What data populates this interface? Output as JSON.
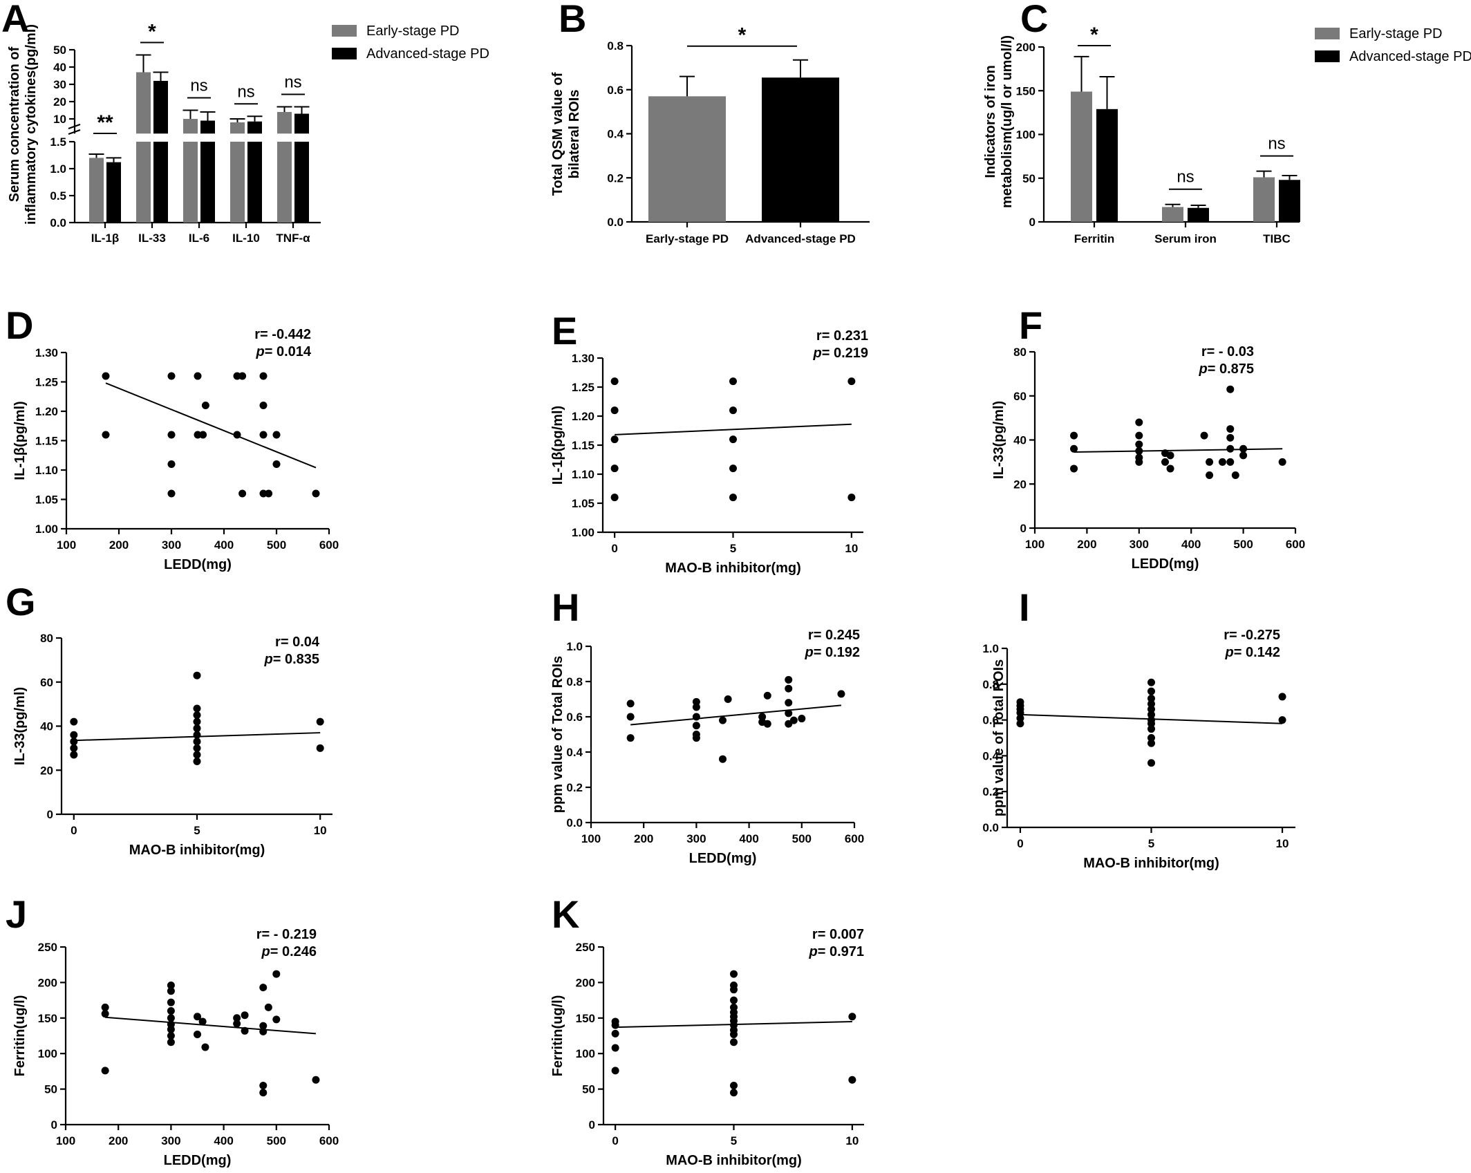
{
  "colors": {
    "early": "#7a7a7a",
    "advanced": "#000000",
    "axis": "#000000"
  },
  "chart_data": [
    {
      "id": "A",
      "type": "bar",
      "panel_label": "A",
      "ylabel_lines": [
        "Serum concentration of",
        "inflammatory cytokines(pg/ml)"
      ],
      "categories": [
        "IL-1β",
        "IL-33",
        "IL-6",
        "IL-10",
        "TNF-α"
      ],
      "axis_break": {
        "lower": [
          0,
          1.5
        ],
        "upper": [
          1.5,
          50
        ]
      },
      "lower_ticks": [
        "0.0",
        "0.5",
        "1.0",
        "1.5"
      ],
      "upper_ticks": [
        "10",
        "20",
        "30",
        "40",
        "50"
      ],
      "series": [
        {
          "name": "Early-stage PD",
          "values": [
            1.2,
            37,
            10,
            8,
            14
          ],
          "errors": [
            0.07,
            10,
            5,
            2,
            3
          ]
        },
        {
          "name": "Advanced-stage PD",
          "values": [
            1.12,
            32,
            9,
            8.5,
            13
          ],
          "errors": [
            0.08,
            5,
            5,
            3,
            4
          ]
        }
      ],
      "significance": [
        "**",
        "*",
        "ns",
        "ns",
        "ns"
      ],
      "legend": [
        "Early-stage PD",
        "Advanced-stage PD"
      ]
    },
    {
      "id": "B",
      "type": "bar",
      "panel_label": "B",
      "ylabel_lines": [
        "Total QSM value of",
        "bilateral ROIs"
      ],
      "categories": [
        "Early-stage PD",
        "Advanced-stage PD"
      ],
      "values": [
        0.57,
        0.655
      ],
      "errors": [
        0.09,
        0.08
      ],
      "ylim": [
        0,
        0.8
      ],
      "yticks": [
        "0.0",
        "0.2",
        "0.4",
        "0.6",
        "0.8"
      ],
      "significance": [
        "*"
      ]
    },
    {
      "id": "C",
      "type": "bar",
      "panel_label": "C",
      "ylabel_lines": [
        "Indicators of iron",
        "metabolism(ug/l or umol/l)"
      ],
      "categories": [
        "Ferritin",
        "Serum iron",
        "TIBC"
      ],
      "series": [
        {
          "name": "Early-stage PD",
          "values": [
            149,
            17,
            51
          ],
          "errors": [
            40,
            3,
            7
          ]
        },
        {
          "name": "Advanced-stage PD",
          "values": [
            129,
            16,
            48
          ],
          "errors": [
            37,
            3,
            5
          ]
        }
      ],
      "ylim": [
        0,
        200
      ],
      "yticks": [
        "0",
        "50",
        "100",
        "150",
        "200"
      ],
      "significance": [
        "*",
        "ns",
        "ns"
      ],
      "legend": [
        "Early-stage PD",
        "Advanced-stage PD"
      ]
    },
    {
      "id": "D",
      "type": "scatter",
      "panel_label": "D",
      "xlabel": "LEDD(mg)",
      "ylabel": "IL-1β(pg/ml)",
      "xlim": [
        100,
        600
      ],
      "ylim": [
        1.0,
        1.3
      ],
      "xticks": [
        "100",
        "200",
        "300",
        "400",
        "500",
        "600"
      ],
      "yticks": [
        "1.00",
        "1.05",
        "1.10",
        "1.15",
        "1.20",
        "1.25",
        "1.30"
      ],
      "r_text": "r= -0.442",
      "p_value": "0.014",
      "fit": [
        [
          175,
          1.248
        ],
        [
          575,
          1.104
        ]
      ],
      "points": [
        [
          175,
          1.26
        ],
        [
          175,
          1.16
        ],
        [
          300,
          1.26
        ],
        [
          300,
          1.16
        ],
        [
          300,
          1.11
        ],
        [
          300,
          1.06
        ],
        [
          350,
          1.26
        ],
        [
          350,
          1.16
        ],
        [
          360,
          1.16
        ],
        [
          365,
          1.21
        ],
        [
          425,
          1.26
        ],
        [
          425,
          1.16
        ],
        [
          435,
          1.26
        ],
        [
          435,
          1.06
        ],
        [
          475,
          1.26
        ],
        [
          475,
          1.21
        ],
        [
          475,
          1.16
        ],
        [
          475,
          1.06
        ],
        [
          485,
          1.06
        ],
        [
          500,
          1.16
        ],
        [
          500,
          1.11
        ],
        [
          575,
          1.06
        ]
      ]
    },
    {
      "id": "E",
      "type": "scatter",
      "panel_label": "E",
      "xlabel": "MAO-B inhibitor(mg)",
      "ylabel": "IL-1β(pg/ml)",
      "xlim": [
        -0.5,
        10.5
      ],
      "ylim": [
        1.0,
        1.3
      ],
      "xticks": [
        "0",
        "5",
        "10"
      ],
      "yticks": [
        "1.00",
        "1.05",
        "1.10",
        "1.15",
        "1.20",
        "1.25",
        "1.30"
      ],
      "r_text": "r= 0.231",
      "p_value": "0.219",
      "fit": [
        [
          0,
          1.168
        ],
        [
          10,
          1.186
        ]
      ],
      "points": [
        [
          0,
          1.26
        ],
        [
          0,
          1.21
        ],
        [
          0,
          1.16
        ],
        [
          0,
          1.11
        ],
        [
          0,
          1.06
        ],
        [
          5,
          1.26
        ],
        [
          5,
          1.21
        ],
        [
          5,
          1.16
        ],
        [
          5,
          1.11
        ],
        [
          5,
          1.06
        ],
        [
          10,
          1.26
        ],
        [
          10,
          1.06
        ]
      ]
    },
    {
      "id": "F",
      "type": "scatter",
      "panel_label": "F",
      "xlabel": "LEDD(mg)",
      "ylabel": "IL-33(pg/ml)",
      "xlim": [
        100,
        600
      ],
      "ylim": [
        0,
        80
      ],
      "xticks": [
        "100",
        "200",
        "300",
        "400",
        "500",
        "600"
      ],
      "yticks": [
        "0",
        "20",
        "40",
        "60",
        "80"
      ],
      "r_text": "r= - 0.03",
      "p_value": "0.875",
      "fit": [
        [
          175,
          34.5
        ],
        [
          575,
          36
        ]
      ],
      "points": [
        [
          175,
          42
        ],
        [
          175,
          36
        ],
        [
          175,
          27
        ],
        [
          300,
          48
        ],
        [
          300,
          42
        ],
        [
          300,
          38
        ],
        [
          300,
          35
        ],
        [
          300,
          32
        ],
        [
          300,
          30
        ],
        [
          350,
          34
        ],
        [
          350,
          30
        ],
        [
          360,
          33
        ],
        [
          360,
          27
        ],
        [
          425,
          42
        ],
        [
          435,
          30
        ],
        [
          435,
          24
        ],
        [
          460,
          30
        ],
        [
          475,
          63
        ],
        [
          475,
          45
        ],
        [
          475,
          41
        ],
        [
          475,
          36
        ],
        [
          475,
          30
        ],
        [
          485,
          24
        ],
        [
          500,
          36
        ],
        [
          500,
          33
        ],
        [
          575,
          30
        ]
      ]
    },
    {
      "id": "G",
      "type": "scatter",
      "panel_label": "G",
      "xlabel": "MAO-B inhibitor(mg)",
      "ylabel": "IL-33(pg/ml)",
      "xlim": [
        -0.5,
        10.5
      ],
      "ylim": [
        0,
        80
      ],
      "xticks": [
        "0",
        "5",
        "10"
      ],
      "yticks": [
        "0",
        "20",
        "40",
        "60",
        "80"
      ],
      "r_text": "r= 0.04",
      "p_value": "0.835",
      "fit": [
        [
          0,
          33.5
        ],
        [
          10,
          37
        ]
      ],
      "points": [
        [
          0,
          42
        ],
        [
          0,
          36
        ],
        [
          0,
          33
        ],
        [
          0,
          30
        ],
        [
          0,
          27
        ],
        [
          5,
          63
        ],
        [
          5,
          48
        ],
        [
          5,
          45
        ],
        [
          5,
          42
        ],
        [
          5,
          39
        ],
        [
          5,
          36
        ],
        [
          5,
          33
        ],
        [
          5,
          30
        ],
        [
          5,
          27
        ],
        [
          5,
          24
        ],
        [
          10,
          42
        ],
        [
          10,
          30
        ]
      ]
    },
    {
      "id": "H",
      "type": "scatter",
      "panel_label": "H",
      "xlabel": "LEDD(mg)",
      "ylabel": "ppm value of Total ROIs",
      "xlim": [
        100,
        600
      ],
      "ylim": [
        0,
        1.0
      ],
      "xticks": [
        "100",
        "200",
        "300",
        "400",
        "500",
        "600"
      ],
      "yticks": [
        "0.0",
        "0.2",
        "0.4",
        "0.6",
        "0.8",
        "1.0"
      ],
      "r_text": "r= 0.245",
      "p_value": "0.192",
      "fit": [
        [
          175,
          0.555
        ],
        [
          575,
          0.665
        ]
      ],
      "points": [
        [
          175,
          0.675
        ],
        [
          175,
          0.6
        ],
        [
          175,
          0.48
        ],
        [
          300,
          0.685
        ],
        [
          300,
          0.655
        ],
        [
          300,
          0.6
        ],
        [
          300,
          0.55
        ],
        [
          300,
          0.5
        ],
        [
          300,
          0.48
        ],
        [
          350,
          0.58
        ],
        [
          350,
          0.36
        ],
        [
          360,
          0.7
        ],
        [
          425,
          0.6
        ],
        [
          425,
          0.57
        ],
        [
          435,
          0.72
        ],
        [
          435,
          0.56
        ],
        [
          475,
          0.81
        ],
        [
          475,
          0.76
        ],
        [
          475,
          0.68
        ],
        [
          475,
          0.62
        ],
        [
          475,
          0.56
        ],
        [
          485,
          0.58
        ],
        [
          500,
          0.59
        ],
        [
          575,
          0.73
        ]
      ]
    },
    {
      "id": "I",
      "type": "scatter",
      "panel_label": "I",
      "xlabel": "MAO-B inhibitor(mg)",
      "ylabel": "ppm value of Total ROIs",
      "xlim": [
        -0.5,
        10.5
      ],
      "ylim": [
        0,
        1.0
      ],
      "xticks": [
        "0",
        "5",
        "10"
      ],
      "yticks": [
        "0.0",
        "0.2",
        "0.4",
        "0.6",
        "0.8",
        "1.0"
      ],
      "r_text": "r= -0.275",
      "p_value": "0.142",
      "fit": [
        [
          0,
          0.63
        ],
        [
          10,
          0.58
        ]
      ],
      "points": [
        [
          0,
          0.7
        ],
        [
          0,
          0.68
        ],
        [
          0,
          0.66
        ],
        [
          0,
          0.64
        ],
        [
          0,
          0.61
        ],
        [
          0,
          0.58
        ],
        [
          5,
          0.81
        ],
        [
          5,
          0.76
        ],
        [
          5,
          0.72
        ],
        [
          5,
          0.69
        ],
        [
          5,
          0.66
        ],
        [
          5,
          0.63
        ],
        [
          5,
          0.6
        ],
        [
          5,
          0.58
        ],
        [
          5,
          0.55
        ],
        [
          5,
          0.5
        ],
        [
          5,
          0.47
        ],
        [
          5,
          0.36
        ],
        [
          10,
          0.73
        ],
        [
          10,
          0.6
        ]
      ]
    },
    {
      "id": "J",
      "type": "scatter",
      "panel_label": "J",
      "xlabel": "LEDD(mg)",
      "ylabel": "Ferritin(ug/l)",
      "xlim": [
        100,
        600
      ],
      "ylim": [
        0,
        250
      ],
      "xticks": [
        "100",
        "200",
        "300",
        "400",
        "500",
        "600"
      ],
      "yticks": [
        "0",
        "50",
        "100",
        "150",
        "200",
        "250"
      ],
      "r_text": "r= - 0.219",
      "p_value": "0.246",
      "fit": [
        [
          175,
          151
        ],
        [
          575,
          128
        ]
      ],
      "points": [
        [
          175,
          165
        ],
        [
          175,
          156
        ],
        [
          175,
          76
        ],
        [
          300,
          196
        ],
        [
          300,
          188
        ],
        [
          300,
          172
        ],
        [
          300,
          160
        ],
        [
          300,
          150
        ],
        [
          300,
          141
        ],
        [
          300,
          134
        ],
        [
          300,
          125
        ],
        [
          300,
          116
        ],
        [
          350,
          152
        ],
        [
          350,
          127
        ],
        [
          360,
          145
        ],
        [
          365,
          109
        ],
        [
          425,
          150
        ],
        [
          425,
          142
        ],
        [
          440,
          154
        ],
        [
          440,
          132
        ],
        [
          475,
          193
        ],
        [
          475,
          139
        ],
        [
          475,
          131
        ],
        [
          475,
          55
        ],
        [
          475,
          45
        ],
        [
          485,
          165
        ],
        [
          500,
          212
        ],
        [
          500,
          148
        ],
        [
          575,
          63
        ]
      ]
    },
    {
      "id": "K",
      "type": "scatter",
      "panel_label": "K",
      "xlabel": "MAO-B inhibitor(mg)",
      "ylabel": "Ferritin(ug/l)",
      "xlim": [
        -0.5,
        10.5
      ],
      "ylim": [
        0,
        250
      ],
      "xticks": [
        "0",
        "5",
        "10"
      ],
      "yticks": [
        "0",
        "50",
        "100",
        "150",
        "200",
        "250"
      ],
      "r_text": "r= 0.007",
      "p_value": "0.971",
      "fit": [
        [
          0,
          137
        ],
        [
          10,
          145
        ]
      ],
      "points": [
        [
          0,
          145
        ],
        [
          0,
          140
        ],
        [
          0,
          128
        ],
        [
          0,
          108
        ],
        [
          0,
          76
        ],
        [
          5,
          212
        ],
        [
          5,
          196
        ],
        [
          5,
          190
        ],
        [
          5,
          175
        ],
        [
          5,
          165
        ],
        [
          5,
          158
        ],
        [
          5,
          152
        ],
        [
          5,
          146
        ],
        [
          5,
          140
        ],
        [
          5,
          133
        ],
        [
          5,
          127
        ],
        [
          5,
          116
        ],
        [
          5,
          55
        ],
        [
          5,
          45
        ],
        [
          10,
          152
        ],
        [
          10,
          63
        ]
      ]
    }
  ]
}
